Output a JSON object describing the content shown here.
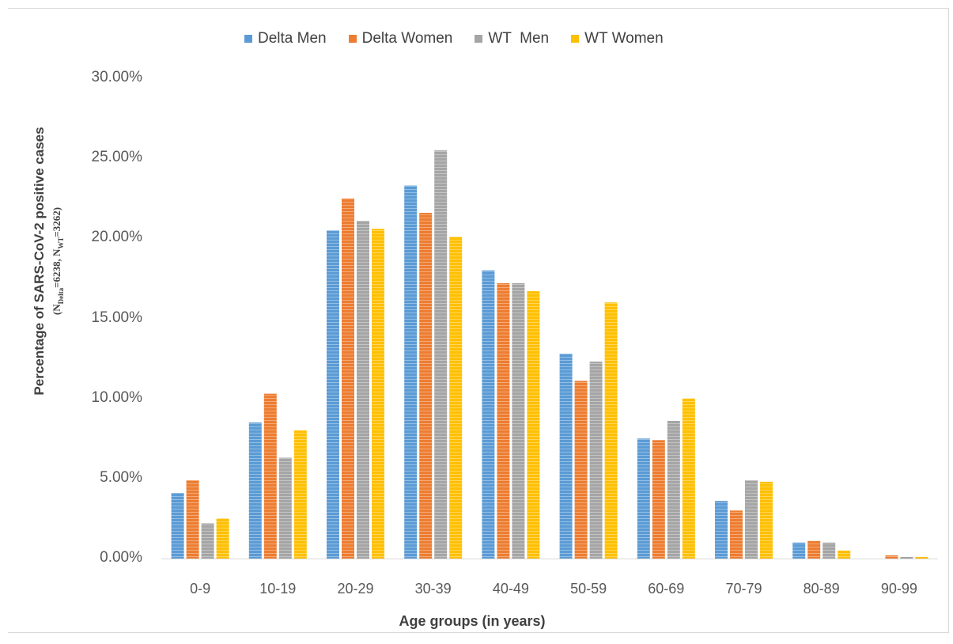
{
  "chart_data": {
    "type": "bar",
    "categories": [
      "0-9",
      "10-19",
      "20-29",
      "30-39",
      "40-49",
      "50-59",
      "60-69",
      "70-79",
      "80-89",
      "90-99"
    ],
    "series": [
      {
        "name": "Delta Men",
        "color": "#5b9bd5",
        "values": [
          4.1,
          8.5,
          20.5,
          23.3,
          18.0,
          12.8,
          7.5,
          3.6,
          1.0,
          0.0
        ]
      },
      {
        "name": "Delta Women",
        "color": "#ed7d31",
        "values": [
          4.9,
          10.3,
          22.5,
          21.6,
          17.2,
          11.1,
          7.4,
          3.0,
          1.1,
          0.2
        ]
      },
      {
        "name": "WT  Men",
        "color": "#a5a5a5",
        "values": [
          2.2,
          6.3,
          21.1,
          25.5,
          17.2,
          12.3,
          8.6,
          4.9,
          1.0,
          0.1
        ]
      },
      {
        "name": "WT Women",
        "color": "#ffc000",
        "values": [
          2.5,
          8.0,
          20.6,
          20.1,
          16.7,
          16.0,
          10.0,
          4.8,
          0.5,
          0.1
        ]
      }
    ],
    "ylim": [
      0,
      30
    ],
    "yticks": [
      "0.00%",
      "5.00%",
      "10.00%",
      "15.00%",
      "20.00%",
      "25.00%",
      "30.00%"
    ],
    "xlabel": "Age groups (in years)",
    "ylabel": "Percentage of SARS-CoV-2 positive cases",
    "ylabel_sub": {
      "open": "(N",
      "delta_sub": "Delta",
      "delta_val": "=6238, N",
      "wt_sub": "WT",
      "wt_val": "=3262)"
    },
    "legend_position": "top",
    "grid": false
  }
}
